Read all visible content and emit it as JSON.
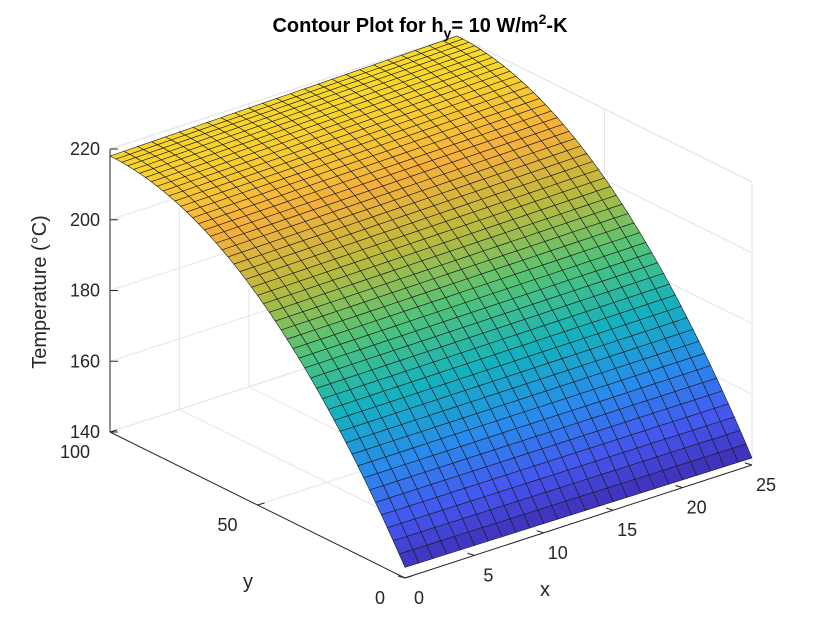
{
  "chart_data": {
    "type": "surface",
    "title": "Contour Plot for h",
    "title_sub": "y",
    "title_mid": "= 10 W/m",
    "title_sup": "2",
    "title_end": "-K",
    "xlabel": "x",
    "ylabel": "y",
    "zlabel": "Temperature (°C)",
    "xlim": [
      0,
      25
    ],
    "ylim": [
      0,
      100
    ],
    "zlim": [
      140,
      220
    ],
    "xticks": [
      "0",
      "5",
      "10",
      "15",
      "20",
      "25"
    ],
    "yticks": [
      "0",
      "50",
      "100"
    ],
    "zticks": [
      "140",
      "160",
      "180",
      "200",
      "220"
    ],
    "x": [
      0,
      25
    ],
    "y": [
      0,
      100
    ],
    "z_formula": "Parabolic in y (max at y=100 edge, min at y=0 edge), weakly dependent on x",
    "corner_values": {
      "x0_y0": 143,
      "x25_y0": 142,
      "x0_y100": 218,
      "x25_y100": 220
    },
    "grid": true,
    "colormap": "parula"
  }
}
